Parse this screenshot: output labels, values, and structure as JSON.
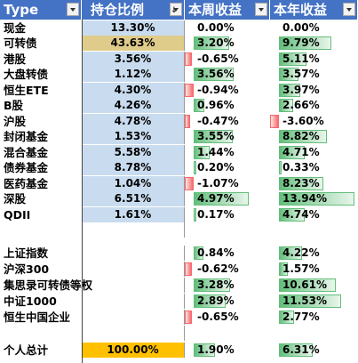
{
  "headers": [
    "Type",
    "持仓比例",
    "本周收益",
    "本年收益"
  ],
  "colors": {
    "header_bg": "#4472c4",
    "pos_bar": "#63be7b",
    "neg_bar": "#f8696b",
    "total_bg": "#ffc000",
    "gold": "#e6d08a",
    "blue_pale": "#c9dcef"
  },
  "rows": [
    {
      "type": "现金",
      "pct": "13.30%",
      "week": "0.00%",
      "year": "0.00%",
      "bg": "#c9dcef",
      "w": 0,
      "y": 0
    },
    {
      "type": "可转债",
      "pct": "43.63%",
      "week": "3.20%",
      "year": "9.79%",
      "bg": "#e0cc8a",
      "w": 3.2,
      "y": 9.79
    },
    {
      "type": "港股",
      "pct": "3.56%",
      "week": "-0.65%",
      "year": "5.11%",
      "bg": "#c9dcef",
      "w": -0.65,
      "y": 5.11
    },
    {
      "type": "大盘转债",
      "pct": "1.12%",
      "week": "3.56%",
      "year": "3.57%",
      "bg": "#c9dcef",
      "w": 3.56,
      "y": 3.57
    },
    {
      "type": "恒生ETE",
      "pct": "4.30%",
      "week": "-0.94%",
      "year": "3.97%",
      "bg": "#c9dcef",
      "w": -0.94,
      "y": 3.97
    },
    {
      "type": "B股",
      "pct": "4.26%",
      "week": "0.96%",
      "year": "2.66%",
      "bg": "#c9dcef",
      "w": 0.96,
      "y": 2.66
    },
    {
      "type": "沪股",
      "pct": "4.78%",
      "week": "-0.47%",
      "year": "-3.60%",
      "bg": "#c9dcef",
      "w": -0.47,
      "y": -3.6
    },
    {
      "type": "封闭基金",
      "pct": "1.53%",
      "week": "3.55%",
      "year": "8.82%",
      "bg": "#c9dcef",
      "w": 3.55,
      "y": 8.82
    },
    {
      "type": "混合基金",
      "pct": "5.58%",
      "week": "1.44%",
      "year": "4.71%",
      "bg": "#c9dcef",
      "w": 1.44,
      "y": 4.71
    },
    {
      "type": "债券基金",
      "pct": "8.78%",
      "week": "0.20%",
      "year": "0.33%",
      "bg": "#c9dcef",
      "w": 0.2,
      "y": 0.33
    },
    {
      "type": "医药基金",
      "pct": "1.04%",
      "week": "-1.07%",
      "year": "8.23%",
      "bg": "#c9dcef",
      "w": -1.07,
      "y": 8.23
    },
    {
      "type": "深股",
      "pct": "6.51%",
      "week": "4.97%",
      "year": "13.94%",
      "bg": "#c9dcef",
      "w": 4.97,
      "y": 13.94
    },
    {
      "type": "QDII",
      "pct": "1.61%",
      "week": "0.17%",
      "year": "4.74%",
      "bg": "#c9dcef",
      "w": 0.17,
      "y": 4.74
    },
    {
      "type": "",
      "pct": "",
      "week": "",
      "year": "",
      "bg": "",
      "w": 0,
      "y": 0
    },
    {
      "type": "上证指数",
      "pct": "",
      "week": "0.84%",
      "year": "4.22%",
      "bg": "",
      "w": 0.84,
      "y": 4.22
    },
    {
      "type": "沪深300",
      "pct": "",
      "week": "-0.62%",
      "year": "1.57%",
      "bg": "",
      "w": -0.62,
      "y": 1.57
    },
    {
      "type": "集思录可转债等权",
      "pct": "",
      "week": "3.28%",
      "year": "10.61%",
      "bg": "",
      "w": 3.28,
      "y": 10.61
    },
    {
      "type": "中证1000",
      "pct": "",
      "week": "2.89%",
      "year": "11.53%",
      "bg": "",
      "w": 2.89,
      "y": 11.53
    },
    {
      "type": "恒生中国企业",
      "pct": "",
      "week": "-0.65%",
      "year": "2.77%",
      "bg": "",
      "w": -0.65,
      "y": 2.77
    },
    {
      "type": "",
      "pct": "",
      "week": "",
      "year": "",
      "bg": "",
      "w": 0,
      "y": 0
    },
    {
      "type": "个人总计",
      "pct": "100.00%",
      "week": "1.90%",
      "year": "6.31%",
      "bg": "#ffc000",
      "w": 1.9,
      "y": 6.31
    }
  ]
}
